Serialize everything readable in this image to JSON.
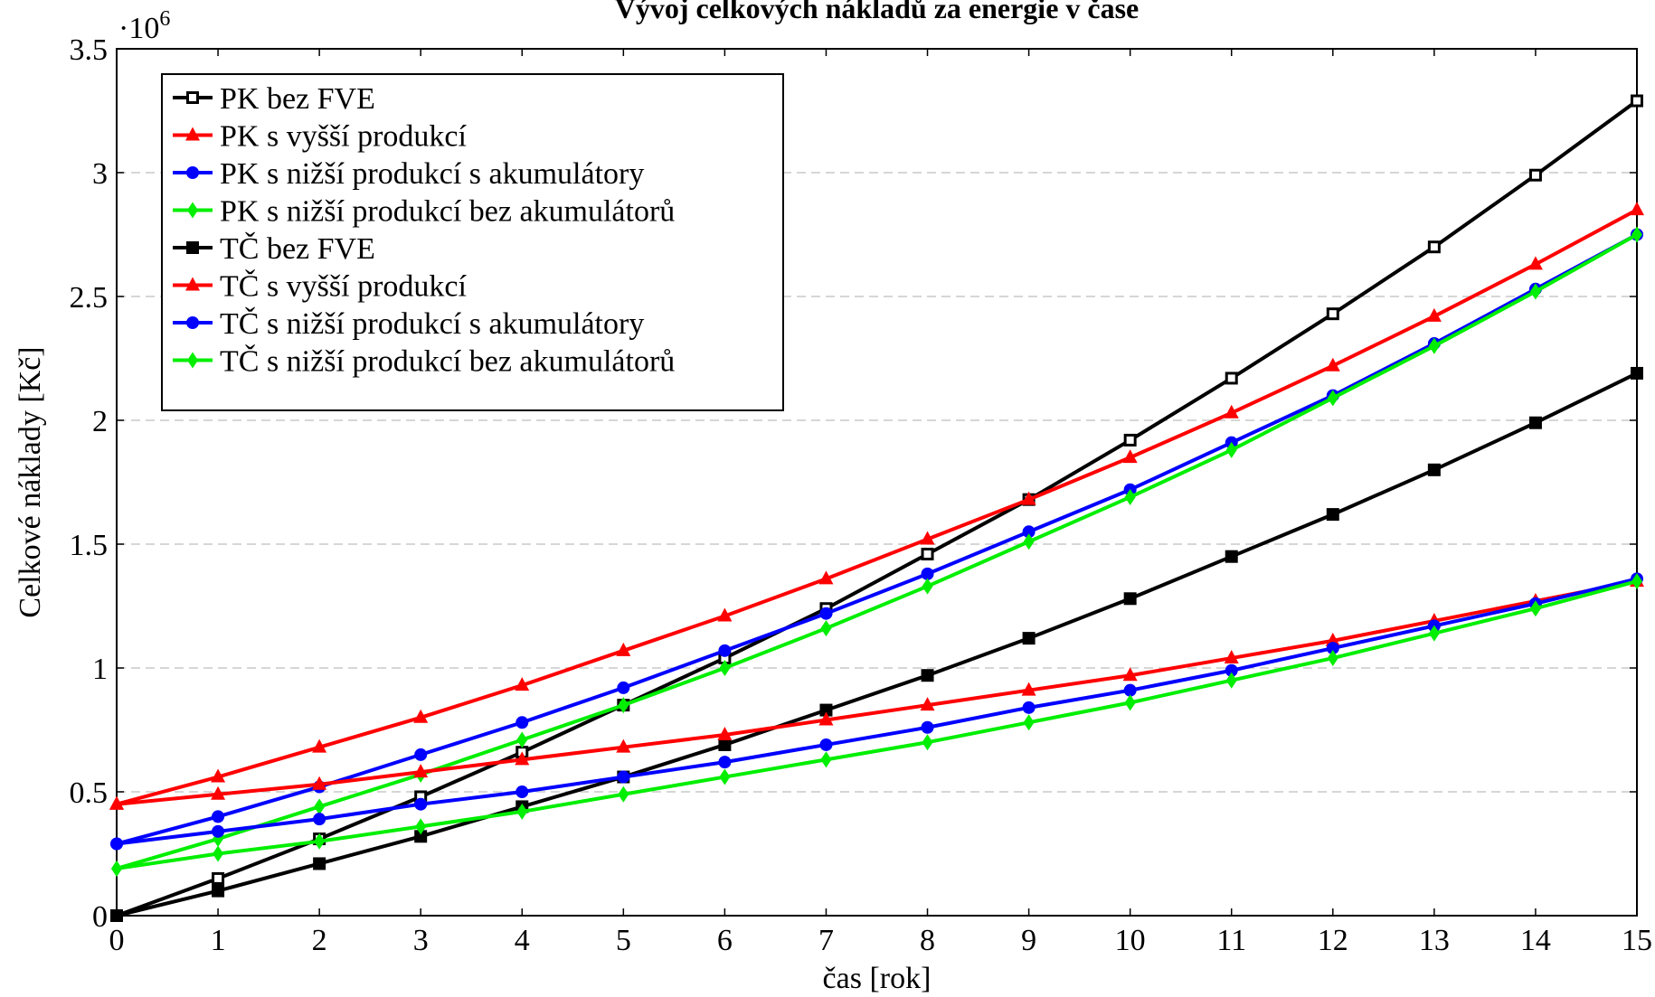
{
  "chart_data": {
    "type": "line",
    "title": "Vývoj celkových nákladů za energie v čase",
    "xlabel": "čas [rok]",
    "ylabel": "Celkové náklady [Kč]",
    "y_multiplier": "·10",
    "y_multiplier_exp": "6",
    "xlim": [
      0,
      15
    ],
    "ylim": [
      0,
      3.5
    ],
    "x": [
      0,
      1,
      2,
      3,
      4,
      5,
      6,
      7,
      8,
      9,
      10,
      11,
      12,
      13,
      14,
      15
    ],
    "x_ticks": [
      "0",
      "1",
      "2",
      "3",
      "4",
      "5",
      "6",
      "7",
      "8",
      "9",
      "10",
      "11",
      "12",
      "13",
      "14",
      "15"
    ],
    "y_ticks": [
      0,
      0.5,
      1,
      1.5,
      2,
      2.5,
      3,
      3.5
    ],
    "y_tick_labels": [
      "0",
      "0.5",
      "1",
      "1.5",
      "2",
      "2.5",
      "3",
      "3.5"
    ],
    "grid": "horizontal dashed",
    "legend_position": "top-left",
    "series": [
      {
        "name": "PK bez FVE",
        "color": "#000000",
        "marker": "square-open",
        "values": [
          0,
          0.15,
          0.31,
          0.48,
          0.66,
          0.85,
          1.04,
          1.24,
          1.46,
          1.68,
          1.92,
          2.17,
          2.43,
          2.7,
          2.99,
          3.29
        ]
      },
      {
        "name": "PK s vyšší produkcí",
        "color": "#ff0000",
        "marker": "triangle",
        "values": [
          0.45,
          0.56,
          0.68,
          0.8,
          0.93,
          1.07,
          1.21,
          1.36,
          1.52,
          1.68,
          1.85,
          2.03,
          2.22,
          2.42,
          2.63,
          2.85
        ]
      },
      {
        "name": "PK s nižší produkcí s akumulátory",
        "color": "#0000ff",
        "marker": "circle",
        "values": [
          0.29,
          0.4,
          0.52,
          0.65,
          0.78,
          0.92,
          1.07,
          1.22,
          1.38,
          1.55,
          1.72,
          1.91,
          2.1,
          2.31,
          2.53,
          2.75
        ]
      },
      {
        "name": "PK s nižší produkcí bez akumulátorů",
        "color": "#00ee00",
        "marker": "diamond",
        "values": [
          0.19,
          0.31,
          0.44,
          0.57,
          0.71,
          0.85,
          1.0,
          1.16,
          1.33,
          1.51,
          1.69,
          1.88,
          2.09,
          2.3,
          2.52,
          2.75
        ]
      },
      {
        "name": "TČ bez FVE",
        "color": "#000000",
        "marker": "square",
        "values": [
          0,
          0.1,
          0.21,
          0.32,
          0.44,
          0.56,
          0.69,
          0.83,
          0.97,
          1.12,
          1.28,
          1.45,
          1.62,
          1.8,
          1.99,
          2.19
        ]
      },
      {
        "name": "TČ s vyšší produkcí",
        "color": "#ff0000",
        "marker": "triangle",
        "values": [
          0.45,
          0.49,
          0.53,
          0.58,
          0.63,
          0.68,
          0.73,
          0.79,
          0.85,
          0.91,
          0.97,
          1.04,
          1.11,
          1.19,
          1.27,
          1.35
        ]
      },
      {
        "name": "TČ s nižší produkcí s akumulátory",
        "color": "#0000ff",
        "marker": "circle",
        "values": [
          0.29,
          0.34,
          0.39,
          0.45,
          0.5,
          0.56,
          0.62,
          0.69,
          0.76,
          0.84,
          0.91,
          0.99,
          1.08,
          1.17,
          1.26,
          1.36
        ]
      },
      {
        "name": "TČ s nižší produkcí bez akumulátorů",
        "color": "#00ee00",
        "marker": "diamond",
        "values": [
          0.19,
          0.25,
          0.3,
          0.36,
          0.42,
          0.49,
          0.56,
          0.63,
          0.7,
          0.78,
          0.86,
          0.95,
          1.04,
          1.14,
          1.24,
          1.35
        ]
      }
    ]
  }
}
